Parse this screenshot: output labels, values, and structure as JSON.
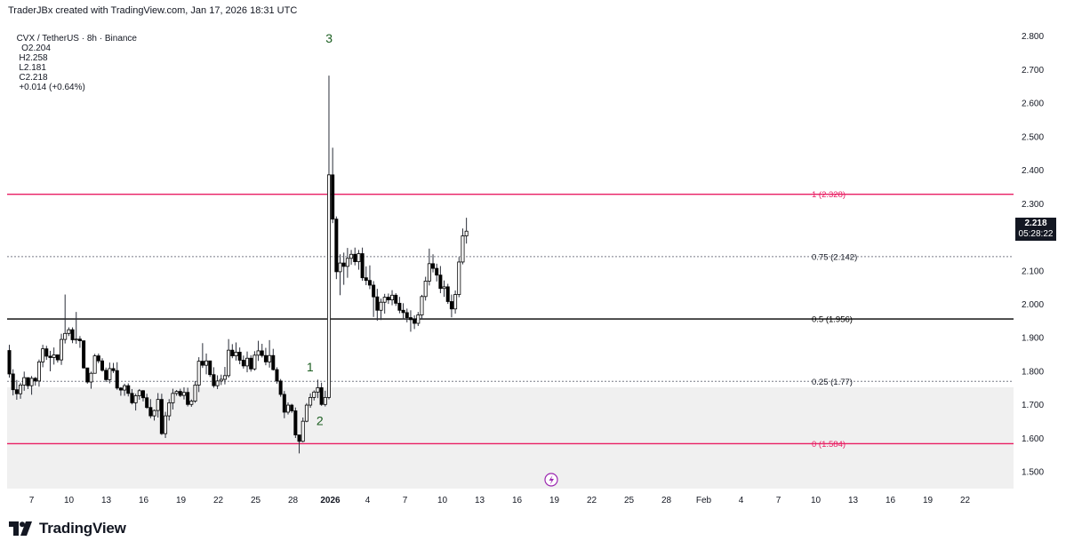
{
  "header": {
    "created_line": "TraderJBx created with TradingView.com, Jan 17, 2026 18:31 UTC",
    "symbol": "CVX / TetherUS · 8h · Binance",
    "open_label": "O",
    "open": "2.204",
    "high_label": "H",
    "high": "2.258",
    "low_label": "L",
    "low": "2.181",
    "close_label": "C",
    "close": "2.218",
    "change": "+0.014 (+0.64%)"
  },
  "price_tag": {
    "price": "2.218",
    "countdown": "05:28:22"
  },
  "footer": {
    "brand": "TradingView"
  },
  "colors": {
    "bull_body": "#ffffff",
    "bear_body": "#000000",
    "wick": "#2a2e39",
    "fib_magenta": "#e91e63",
    "fib_black": "#000000",
    "fib_dotted": "#787b86",
    "zone_fill": "#f0f0f0",
    "wave_label": "#1b5e20",
    "lightning": "#9c27b0"
  },
  "chart_data": {
    "type": "candlestick",
    "timeframe": "8h",
    "y_axis": {
      "ticks": [
        "2.800",
        "2.700",
        "2.600",
        "2.500",
        "2.400",
        "2.300",
        "2.200",
        "2.100",
        "2.000",
        "1.900",
        "1.800",
        "1.700",
        "1.600",
        "1.500"
      ],
      "range": [
        1.45,
        2.86
      ]
    },
    "x_axis": {
      "labels": [
        "7",
        "10",
        "13",
        "16",
        "19",
        "22",
        "25",
        "28",
        "2026",
        "4",
        "7",
        "10",
        "13",
        "16",
        "19",
        "22",
        "25",
        "28",
        "Feb",
        "4",
        "7",
        "10",
        "13",
        "16",
        "19",
        "22"
      ],
      "bold_labels": [
        "2026"
      ]
    },
    "fib_levels": [
      {
        "label": "1 (2.328)",
        "value": 2.328,
        "style": "solid",
        "color": "#e91e63"
      },
      {
        "label": "0.75 (2.142)",
        "value": 2.142,
        "style": "dotted",
        "color": "#787b86"
      },
      {
        "label": "0.5 (1.956)",
        "value": 1.956,
        "style": "solid",
        "color": "#000000"
      },
      {
        "label": "0.25 (1.77)",
        "value": 1.77,
        "style": "dotted",
        "color": "#787b86"
      },
      {
        "label": "0 (1.584)",
        "value": 1.584,
        "style": "solid",
        "color": "#e91e63"
      }
    ],
    "zone": {
      "from": 1.45,
      "to": 1.752
    },
    "wave_labels": [
      {
        "text": "3",
        "at_price": 2.78
      },
      {
        "text": "1",
        "at_price": 1.8
      },
      {
        "text": "2",
        "at_price": 1.64
      }
    ],
    "candles": [
      [
        1.862,
        1.879,
        1.781,
        1.792
      ],
      [
        1.792,
        1.806,
        1.728,
        1.745
      ],
      [
        1.745,
        1.774,
        1.715,
        1.733
      ],
      [
        1.733,
        1.766,
        1.718,
        1.759
      ],
      [
        1.759,
        1.799,
        1.742,
        1.781
      ],
      [
        1.781,
        1.775,
        1.747,
        1.757
      ],
      [
        1.757,
        1.786,
        1.73,
        1.779
      ],
      [
        1.779,
        1.783,
        1.757,
        1.771
      ],
      [
        1.771,
        1.835,
        1.754,
        1.828
      ],
      [
        1.828,
        1.879,
        1.812,
        1.867
      ],
      [
        1.867,
        1.876,
        1.834,
        1.845
      ],
      [
        1.845,
        1.861,
        1.8,
        1.841
      ],
      [
        1.841,
        1.871,
        1.82,
        1.849
      ],
      [
        1.849,
        1.846,
        1.826,
        1.834
      ],
      [
        1.834,
        1.912,
        1.819,
        1.895
      ],
      [
        1.895,
        2.029,
        1.883,
        1.913
      ],
      [
        1.913,
        1.931,
        1.905,
        1.924
      ],
      [
        1.924,
        1.931,
        1.884,
        1.894
      ],
      [
        1.894,
        1.977,
        1.882,
        1.896
      ],
      [
        1.896,
        1.905,
        1.87,
        1.891
      ],
      [
        1.891,
        1.881,
        1.808,
        1.81
      ],
      [
        1.81,
        1.805,
        1.763,
        1.768
      ],
      [
        1.768,
        1.799,
        1.748,
        1.794
      ],
      [
        1.794,
        1.852,
        1.793,
        1.846
      ],
      [
        1.846,
        1.853,
        1.824,
        1.831
      ],
      [
        1.831,
        1.839,
        1.799,
        1.803
      ],
      [
        1.803,
        1.811,
        1.768,
        1.775
      ],
      [
        1.775,
        1.826,
        1.764,
        1.808
      ],
      [
        1.808,
        1.825,
        1.795,
        1.802
      ],
      [
        1.802,
        1.827,
        1.745,
        1.75
      ],
      [
        1.75,
        1.753,
        1.727,
        1.744
      ],
      [
        1.744,
        1.763,
        1.727,
        1.757
      ],
      [
        1.757,
        1.764,
        1.725,
        1.734
      ],
      [
        1.734,
        1.747,
        1.701,
        1.706
      ],
      [
        1.706,
        1.733,
        1.683,
        1.727
      ],
      [
        1.727,
        1.747,
        1.715,
        1.742
      ],
      [
        1.742,
        1.744,
        1.71,
        1.721
      ],
      [
        1.721,
        1.733,
        1.688,
        1.692
      ],
      [
        1.692,
        1.717,
        1.66,
        1.667
      ],
      [
        1.667,
        1.686,
        1.653,
        1.683
      ],
      [
        1.683,
        1.735,
        1.662,
        1.716
      ],
      [
        1.716,
        1.733,
        1.61,
        1.614
      ],
      [
        1.614,
        1.679,
        1.601,
        1.667
      ],
      [
        1.667,
        1.717,
        1.653,
        1.706
      ],
      [
        1.706,
        1.748,
        1.686,
        1.734
      ],
      [
        1.734,
        1.744,
        1.727,
        1.74
      ],
      [
        1.74,
        1.748,
        1.723,
        1.728
      ],
      [
        1.728,
        1.752,
        1.716,
        1.737
      ],
      [
        1.737,
        1.751,
        1.695,
        1.701
      ],
      [
        1.701,
        1.716,
        1.694,
        1.711
      ],
      [
        1.711,
        1.771,
        1.706,
        1.759
      ],
      [
        1.759,
        1.842,
        1.738,
        1.83
      ],
      [
        1.83,
        1.884,
        1.81,
        1.818
      ],
      [
        1.818,
        1.853,
        1.791,
        1.831
      ],
      [
        1.831,
        1.831,
        1.783,
        1.79
      ],
      [
        1.79,
        1.812,
        1.751,
        1.757
      ],
      [
        1.757,
        1.788,
        1.747,
        1.771
      ],
      [
        1.771,
        1.79,
        1.759,
        1.776
      ],
      [
        1.776,
        1.813,
        1.761,
        1.787
      ],
      [
        1.787,
        1.896,
        1.781,
        1.863
      ],
      [
        1.863,
        1.881,
        1.839,
        1.846
      ],
      [
        1.846,
        1.886,
        1.832,
        1.857
      ],
      [
        1.857,
        1.871,
        1.821,
        1.833
      ],
      [
        1.833,
        1.847,
        1.808,
        1.816
      ],
      [
        1.816,
        1.859,
        1.797,
        1.839
      ],
      [
        1.839,
        1.848,
        1.799,
        1.807
      ],
      [
        1.807,
        1.86,
        1.802,
        1.848
      ],
      [
        1.848,
        1.891,
        1.831,
        1.861
      ],
      [
        1.861,
        1.882,
        1.841,
        1.847
      ],
      [
        1.847,
        1.87,
        1.818,
        1.828
      ],
      [
        1.828,
        1.893,
        1.811,
        1.847
      ],
      [
        1.847,
        1.867,
        1.802,
        1.805
      ],
      [
        1.805,
        1.812,
        1.763,
        1.771
      ],
      [
        1.771,
        1.777,
        1.724,
        1.731
      ],
      [
        1.731,
        1.741,
        1.66,
        1.678
      ],
      [
        1.678,
        1.707,
        1.671,
        1.699
      ],
      [
        1.699,
        1.703,
        1.676,
        1.682
      ],
      [
        1.682,
        1.692,
        1.601,
        1.61
      ],
      [
        1.61,
        1.601,
        1.555,
        1.591
      ],
      [
        1.591,
        1.662,
        1.588,
        1.651
      ],
      [
        1.651,
        1.705,
        1.648,
        1.699
      ],
      [
        1.699,
        1.734,
        1.691,
        1.722
      ],
      [
        1.722,
        1.743,
        1.713,
        1.738
      ],
      [
        1.738,
        1.775,
        1.72,
        1.751
      ],
      [
        1.751,
        1.766,
        1.697,
        1.701
      ],
      [
        1.701,
        1.742,
        1.695,
        1.722
      ],
      [
        1.722,
        2.682,
        1.716,
        2.386
      ],
      [
        2.386,
        2.467,
        2.242,
        2.254
      ],
      [
        2.254,
        2.262,
        2.075,
        2.097
      ],
      [
        2.097,
        2.149,
        2.027,
        2.123
      ],
      [
        2.123,
        2.154,
        2.058,
        2.113
      ],
      [
        2.113,
        2.168,
        2.079,
        2.137
      ],
      [
        2.137,
        2.162,
        2.118,
        2.149
      ],
      [
        2.149,
        2.169,
        2.116,
        2.127
      ],
      [
        2.127,
        2.162,
        2.103,
        2.151
      ],
      [
        2.151,
        2.169,
        2.07,
        2.079
      ],
      [
        2.079,
        2.113,
        2.057,
        2.071
      ],
      [
        2.071,
        2.116,
        2.045,
        2.057
      ],
      [
        2.057,
        2.069,
        1.962,
        2.022
      ],
      [
        2.022,
        2.046,
        1.951,
        1.982
      ],
      [
        1.982,
        2.017,
        1.953,
        2.006
      ],
      [
        2.006,
        2.031,
        1.972,
        2.021
      ],
      [
        2.021,
        2.032,
        2.001,
        2.013
      ],
      [
        2.013,
        2.042,
        1.997,
        2.027
      ],
      [
        2.027,
        2.033,
        1.995,
        2.003
      ],
      [
        2.003,
        2.022,
        1.973,
        1.982
      ],
      [
        1.982,
        2.003,
        1.955,
        1.975
      ],
      [
        1.975,
        1.987,
        1.946,
        1.96
      ],
      [
        1.96,
        1.982,
        1.918,
        1.954
      ],
      [
        1.954,
        1.967,
        1.926,
        1.943
      ],
      [
        1.943,
        1.977,
        1.935,
        1.968
      ],
      [
        1.968,
        2.028,
        1.956,
        2.023
      ],
      [
        2.023,
        2.082,
        2.011,
        2.069
      ],
      [
        2.069,
        2.166,
        2.056,
        2.121
      ],
      [
        2.121,
        2.149,
        2.095,
        2.107
      ],
      [
        2.107,
        2.121,
        2.068,
        2.087
      ],
      [
        2.087,
        2.114,
        2.033,
        2.047
      ],
      [
        2.047,
        2.071,
        2.022,
        2.052
      ],
      [
        2.052,
        2.061,
        2.001,
        2.008
      ],
      [
        2.008,
        2.029,
        1.961,
        1.986
      ],
      [
        1.986,
        2.041,
        1.972,
        2.029
      ],
      [
        2.029,
        2.141,
        2.021,
        2.126
      ],
      [
        2.126,
        2.226,
        2.119,
        2.204
      ],
      [
        2.204,
        2.258,
        2.181,
        2.218
      ]
    ]
  }
}
